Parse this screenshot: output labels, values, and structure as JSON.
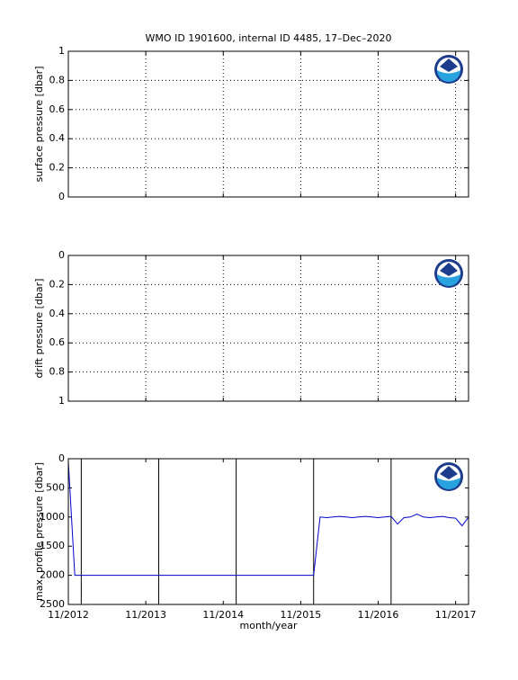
{
  "chart_data": [
    {
      "type": "line",
      "title": "WMO ID 1901600, internal ID 4485, 17–Dec–2020",
      "ylabel": "surface pressure [dbar]",
      "xlim": [
        "2012-11",
        "2018-01"
      ],
      "xticks": [
        "2012-11",
        "2013-11",
        "2014-11",
        "2015-11",
        "2016-11",
        "2017-11"
      ],
      "ylim": [
        0,
        1
      ],
      "yticks": [
        0,
        0.2,
        0.4,
        0.6,
        0.8,
        1
      ],
      "y_reversed": false,
      "grid": true
    },
    {
      "type": "line",
      "ylabel": "drift pressure [dbar]",
      "xlim": [
        "2012-11",
        "2018-01"
      ],
      "xticks": [
        "2012-11",
        "2013-11",
        "2014-11",
        "2015-11",
        "2016-11",
        "2017-11"
      ],
      "ylim": [
        0,
        1
      ],
      "yticks": [
        0,
        0.2,
        0.4,
        0.6,
        0.8,
        1
      ],
      "y_reversed": true,
      "grid": true
    },
    {
      "type": "line",
      "ylabel": "max. profile pressure [dbar]",
      "xlabel": "month/year",
      "xlim": [
        "2012-11",
        "2018-01"
      ],
      "xticks": [
        {
          "value": "2012-11",
          "label": "11/2012"
        },
        {
          "value": "2013-11",
          "label": "11/2013"
        },
        {
          "value": "2014-11",
          "label": "11/2014"
        },
        {
          "value": "2015-11",
          "label": "11/2015"
        },
        {
          "value": "2016-11",
          "label": "11/2016"
        },
        {
          "value": "2017-11",
          "label": "11/2017"
        }
      ],
      "ylim": [
        0,
        2500
      ],
      "yticks": [
        0,
        500,
        1000,
        1500,
        2000,
        2500
      ],
      "y_reversed": true,
      "grid": false,
      "vlines": [
        "2013-01",
        "2014-01",
        "2015-01",
        "2016-01",
        "2017-01",
        "2018-01"
      ],
      "x": [
        "2012-11",
        "2012-12",
        "2016-01",
        "2016-02",
        "2016-03",
        "2016-04",
        "2016-05",
        "2016-06",
        "2016-07",
        "2016-08",
        "2016-09",
        "2016-10",
        "2016-11",
        "2016-12",
        "2017-01",
        "2017-02",
        "2017-03",
        "2017-04",
        "2017-05",
        "2017-06",
        "2017-07",
        "2017-08",
        "2017-09",
        "2017-10",
        "2017-11",
        "2017-12",
        "2018-01"
      ],
      "series": [
        {
          "color": "#0000cc",
          "values": [
            50,
            2000,
            2000,
            1000,
            1010,
            1000,
            990,
            1000,
            1010,
            1000,
            990,
            1000,
            1010,
            1000,
            990,
            1120,
            1010,
            1000,
            950,
            1000,
            1010,
            1000,
            990,
            1010,
            1020,
            1150,
            1000
          ]
        }
      ]
    }
  ]
}
